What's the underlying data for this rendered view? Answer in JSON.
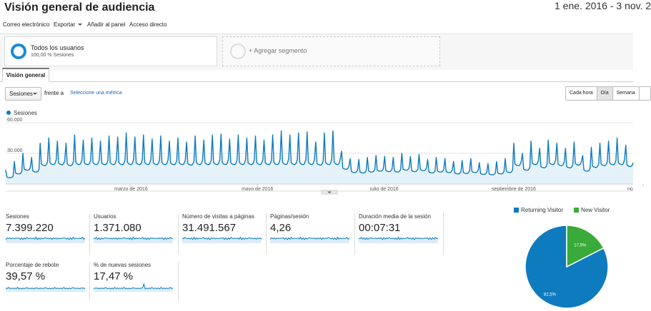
{
  "header": {
    "title": "Visión general de audiencia",
    "date_range": "1 ene. 2016 - 3 nov. 2"
  },
  "toolbar": {
    "email": "Correo electrónico",
    "export": "Exportar",
    "add_to_panel": "Añadir al panel",
    "shortcut": "Acceso directo"
  },
  "segments": {
    "active_label": "Todos los usuarios",
    "active_sub": "100,00 % Sesiones",
    "add_label": "+ Agregar segmento"
  },
  "tabs": {
    "overview": "Visión general"
  },
  "controls": {
    "metric_select": "Sesiones",
    "versus": "frente a",
    "select_metric_link": "Seleccione una métrica",
    "granularity": [
      "Cada hora",
      "Día",
      "Semana"
    ],
    "granularity_selected": "Día"
  },
  "colors": {
    "series": "#0e7bbf",
    "series_fill": "#e6f2fa",
    "returning": "#0e7bbf",
    "new": "#3aaa3a",
    "link": "#1a63b5"
  },
  "chart_data": {
    "type": "area",
    "series_name": "Sesiones",
    "y_ticks": [
      "60.000",
      "30.000"
    ],
    "ylim": [
      0,
      60000
    ],
    "x_ticks": [
      "marzo de 2016",
      "mayo de 2016",
      "julio de 2016",
      "septiembre de 2016",
      "no"
    ],
    "grid": true,
    "weekly_peaks": [
      14000,
      22000,
      30000,
      26000,
      40000,
      45000,
      42000,
      40000,
      48000,
      43000,
      45000,
      42000,
      47000,
      46000,
      50000,
      46000,
      48000,
      44000,
      47000,
      42000,
      45000,
      41000,
      47000,
      43000,
      48000,
      49000,
      44000,
      48000,
      45000,
      47000,
      43000,
      48000,
      52000,
      48000,
      50000,
      51000,
      41000,
      50000,
      52000,
      32000,
      25000,
      24000,
      26000,
      28000,
      27000,
      26000,
      30000,
      27000,
      29000,
      24000,
      26000,
      25000,
      22000,
      23000,
      25000,
      21000,
      20000,
      22000,
      25000,
      40000,
      30000,
      42000,
      35000,
      43000,
      40000,
      35000,
      41000,
      28000,
      36000,
      40000,
      42000,
      45000,
      38000
    ]
  },
  "metrics": [
    {
      "label": "Sesiones",
      "value": "7.399.220"
    },
    {
      "label": "Usuarios",
      "value": "1.371.080"
    },
    {
      "label": "Número de visitas a páginas",
      "value": "31.491.567"
    },
    {
      "label": "Páginas/sesión",
      "value": "4,26"
    },
    {
      "label": "Duración media de la sesión",
      "value": "00:07:31"
    },
    {
      "label": "Porcentaje de rebote",
      "value": "39,57 %"
    },
    {
      "label": "% de nuevas sesiones",
      "value": "17,47 %"
    }
  ],
  "pie": {
    "legend": [
      {
        "name": "Returning Visitor",
        "color": "#0e7bbf"
      },
      {
        "name": "New Visitor",
        "color": "#3aaa3a"
      }
    ],
    "slices": [
      {
        "name": "Returning Visitor",
        "value": 82.5,
        "label": "82,5%"
      },
      {
        "name": "New Visitor",
        "value": 17.5,
        "label": "17,5%"
      }
    ]
  }
}
